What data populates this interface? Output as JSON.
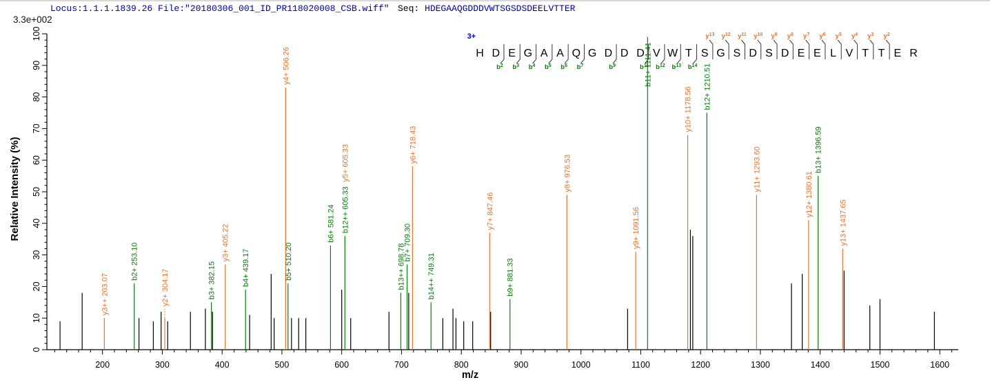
{
  "header": {
    "locus_file": "Locus:1.1.1.1839.26 File:\"20180306_001_ID_PR118020008_CSB.wiff\"",
    "seq_prefix": "Seq: ",
    "sequence": "HDEGAAQGDDDVWTSGSDSDEELVTTER"
  },
  "chart_data": {
    "type": "bar",
    "subtype": "ms2-peptide-fragmentation-spectrum",
    "title": "",
    "xlabel": "m/z",
    "ylabel": "Relative  Intensity  (%)",
    "intensity_scale": "3.3e+002",
    "precursor_charge": "3+",
    "xlim": [
      107,
      1631
    ],
    "ylim": [
      0,
      100
    ],
    "x_major_ticks": [
      200,
      300,
      400,
      500,
      600,
      700,
      800,
      900,
      1000,
      1100,
      1200,
      1300,
      1400,
      1500,
      1600
    ],
    "x_minor_step": 20,
    "x_minor_range": [
      120,
      1620
    ],
    "y_major_step": 10,
    "y_minor_step": 2,
    "grid": false,
    "legend": false,
    "colors": {
      "y_ion": "#E0752F",
      "b_ion": "#0A7A0A",
      "unassigned_peak": "#000000",
      "header_text": "#000099",
      "charge_label": "#0000CC",
      "axis": "#000000"
    },
    "peptide": {
      "residues": "HDEGAAQGDDDVWTSGSDSDEELVTTER",
      "b_ion_markers": [
        {
          "pos": 2,
          "label": "b2"
        },
        {
          "pos": 3,
          "label": "b3"
        },
        {
          "pos": 4,
          "label": "b4"
        },
        {
          "pos": 5,
          "label": "b5"
        },
        {
          "pos": 6,
          "label": "b6"
        },
        {
          "pos": 7,
          "label": "b7"
        },
        {
          "pos": 9,
          "label": "b9"
        },
        {
          "pos": 11,
          "label": "b11"
        },
        {
          "pos": 12,
          "label": "b12"
        },
        {
          "pos": 13,
          "label": "b13"
        },
        {
          "pos": 14,
          "label": "b14"
        }
      ],
      "y_ion_markers": [
        {
          "pos": 15,
          "label": "y13"
        },
        {
          "pos": 16,
          "label": "y12"
        },
        {
          "pos": 17,
          "label": "y11"
        },
        {
          "pos": 18,
          "label": "y10"
        },
        {
          "pos": 19,
          "label": "y9"
        },
        {
          "pos": 20,
          "label": "y8"
        },
        {
          "pos": 21,
          "label": "y7"
        },
        {
          "pos": 22,
          "label": "y6"
        },
        {
          "pos": 23,
          "label": "y5"
        },
        {
          "pos": 24,
          "label": "y4"
        },
        {
          "pos": 25,
          "label": "y3"
        },
        {
          "pos": 26,
          "label": "y2"
        }
      ]
    },
    "annotated_peaks": [
      {
        "mz": 203.07,
        "intensity": 10,
        "ion": "y3++",
        "label": "y3++ 203.07",
        "series": "y"
      },
      {
        "mz": 253.1,
        "intensity": 21,
        "ion": "b2+",
        "label": "b2+ 253.10",
        "series": "b"
      },
      {
        "mz": 304.17,
        "intensity": 10,
        "ion": "y2+",
        "label": "y2+ 304.17",
        "series": "y",
        "dashed_connector": true
      },
      {
        "mz": 382.15,
        "intensity": 15,
        "ion": "b3+",
        "label": "b3+ 382.15",
        "series": "b"
      },
      {
        "mz": 405.22,
        "intensity": 27,
        "ion": "y3+",
        "label": "y3+ 405.22",
        "series": "y"
      },
      {
        "mz": 439.17,
        "intensity": 19,
        "ion": "b4+",
        "label": "b4+ 439.17",
        "series": "b"
      },
      {
        "mz": 506.26,
        "intensity": 83,
        "ion": "y4+",
        "label": "y4+ 506.26",
        "series": "y"
      },
      {
        "mz": 510.2,
        "intensity": 21,
        "ion": "b5+",
        "label": "b5+ 510.20",
        "series": "b"
      },
      {
        "mz": 581.24,
        "intensity": 33,
        "ion": "b6+",
        "label": "b6+ 581.24",
        "series": "b"
      },
      {
        "mz": 605.33,
        "intensity": 36,
        "ion": "b12++",
        "label": "b12++ 605.33",
        "series": "b",
        "label2": "y5+ 605.33",
        "label2_series": "y"
      },
      {
        "mz": 698.78,
        "intensity": 18,
        "ion": "b13++",
        "label": "b13++ 698.78",
        "series": "b"
      },
      {
        "mz": 709.3,
        "intensity": 27,
        "ion": "b7+",
        "label": "b7+ 709.30",
        "series": "b"
      },
      {
        "mz": 718.43,
        "intensity": 58,
        "ion": "y6+",
        "label": "y6+ 718.43",
        "series": "y"
      },
      {
        "mz": 749.31,
        "intensity": 15,
        "ion": "b14++",
        "label": "b14++ 749.31",
        "series": "b"
      },
      {
        "mz": 847.46,
        "intensity": 37,
        "ion": "y7+",
        "label": "y7+ 847.46",
        "series": "y"
      },
      {
        "mz": 881.33,
        "intensity": 16,
        "ion": "b9+",
        "label": "b9+ 881.33",
        "series": "b"
      },
      {
        "mz": 976.53,
        "intensity": 49,
        "ion": "y8+",
        "label": "y8+ 976.53",
        "series": "y"
      },
      {
        "mz": 1091.56,
        "intensity": 31,
        "ion": "y9+",
        "label": "y9+ 1091.56",
        "series": "y"
      },
      {
        "mz": 1111.41,
        "intensity": 99,
        "ion": "b11+",
        "label": "b11+ 1111.41",
        "series": "b"
      },
      {
        "mz": 1178.56,
        "intensity": 68,
        "ion": "y10+",
        "label": "y10+ 1178.56",
        "series": "y"
      },
      {
        "mz": 1210.51,
        "intensity": 75,
        "ion": "b12+",
        "label": "b12+ 1210.51",
        "series": "b"
      },
      {
        "mz": 1293.6,
        "intensity": 49,
        "ion": "y11+",
        "label": "y11+ 1293.60",
        "series": "y"
      },
      {
        "mz": 1380.61,
        "intensity": 41,
        "ion": "y12+",
        "label": "y12+ 1380.61",
        "series": "y"
      },
      {
        "mz": 1396.59,
        "intensity": 55,
        "ion": "b13+",
        "label": "b13+ 1396.59",
        "series": "b"
      },
      {
        "mz": 1437.65,
        "intensity": 32,
        "ion": "y13+",
        "label": "y13+ 1437.65",
        "series": "y"
      }
    ],
    "unannotated_peaks": [
      [
        129,
        9
      ],
      [
        166,
        18
      ],
      [
        261,
        10
      ],
      [
        285,
        9
      ],
      [
        298,
        12
      ],
      [
        309,
        9
      ],
      [
        347,
        12
      ],
      [
        372,
        13
      ],
      [
        384,
        12
      ],
      [
        446,
        11
      ],
      [
        482,
        24
      ],
      [
        487,
        10
      ],
      [
        516,
        10
      ],
      [
        528,
        10
      ],
      [
        540,
        10
      ],
      [
        600,
        19
      ],
      [
        615,
        10
      ],
      [
        679,
        12
      ],
      [
        712,
        18
      ],
      [
        769,
        10
      ],
      [
        786,
        13
      ],
      [
        791,
        10
      ],
      [
        804,
        9
      ],
      [
        819,
        9
      ],
      [
        849,
        12
      ],
      [
        1078,
        13
      ],
      [
        1183,
        38
      ],
      [
        1187,
        36
      ],
      [
        1352,
        21
      ],
      [
        1370,
        24
      ],
      [
        1440,
        25
      ],
      [
        1483,
        14
      ],
      [
        1500,
        16
      ],
      [
        1591,
        12
      ]
    ]
  }
}
